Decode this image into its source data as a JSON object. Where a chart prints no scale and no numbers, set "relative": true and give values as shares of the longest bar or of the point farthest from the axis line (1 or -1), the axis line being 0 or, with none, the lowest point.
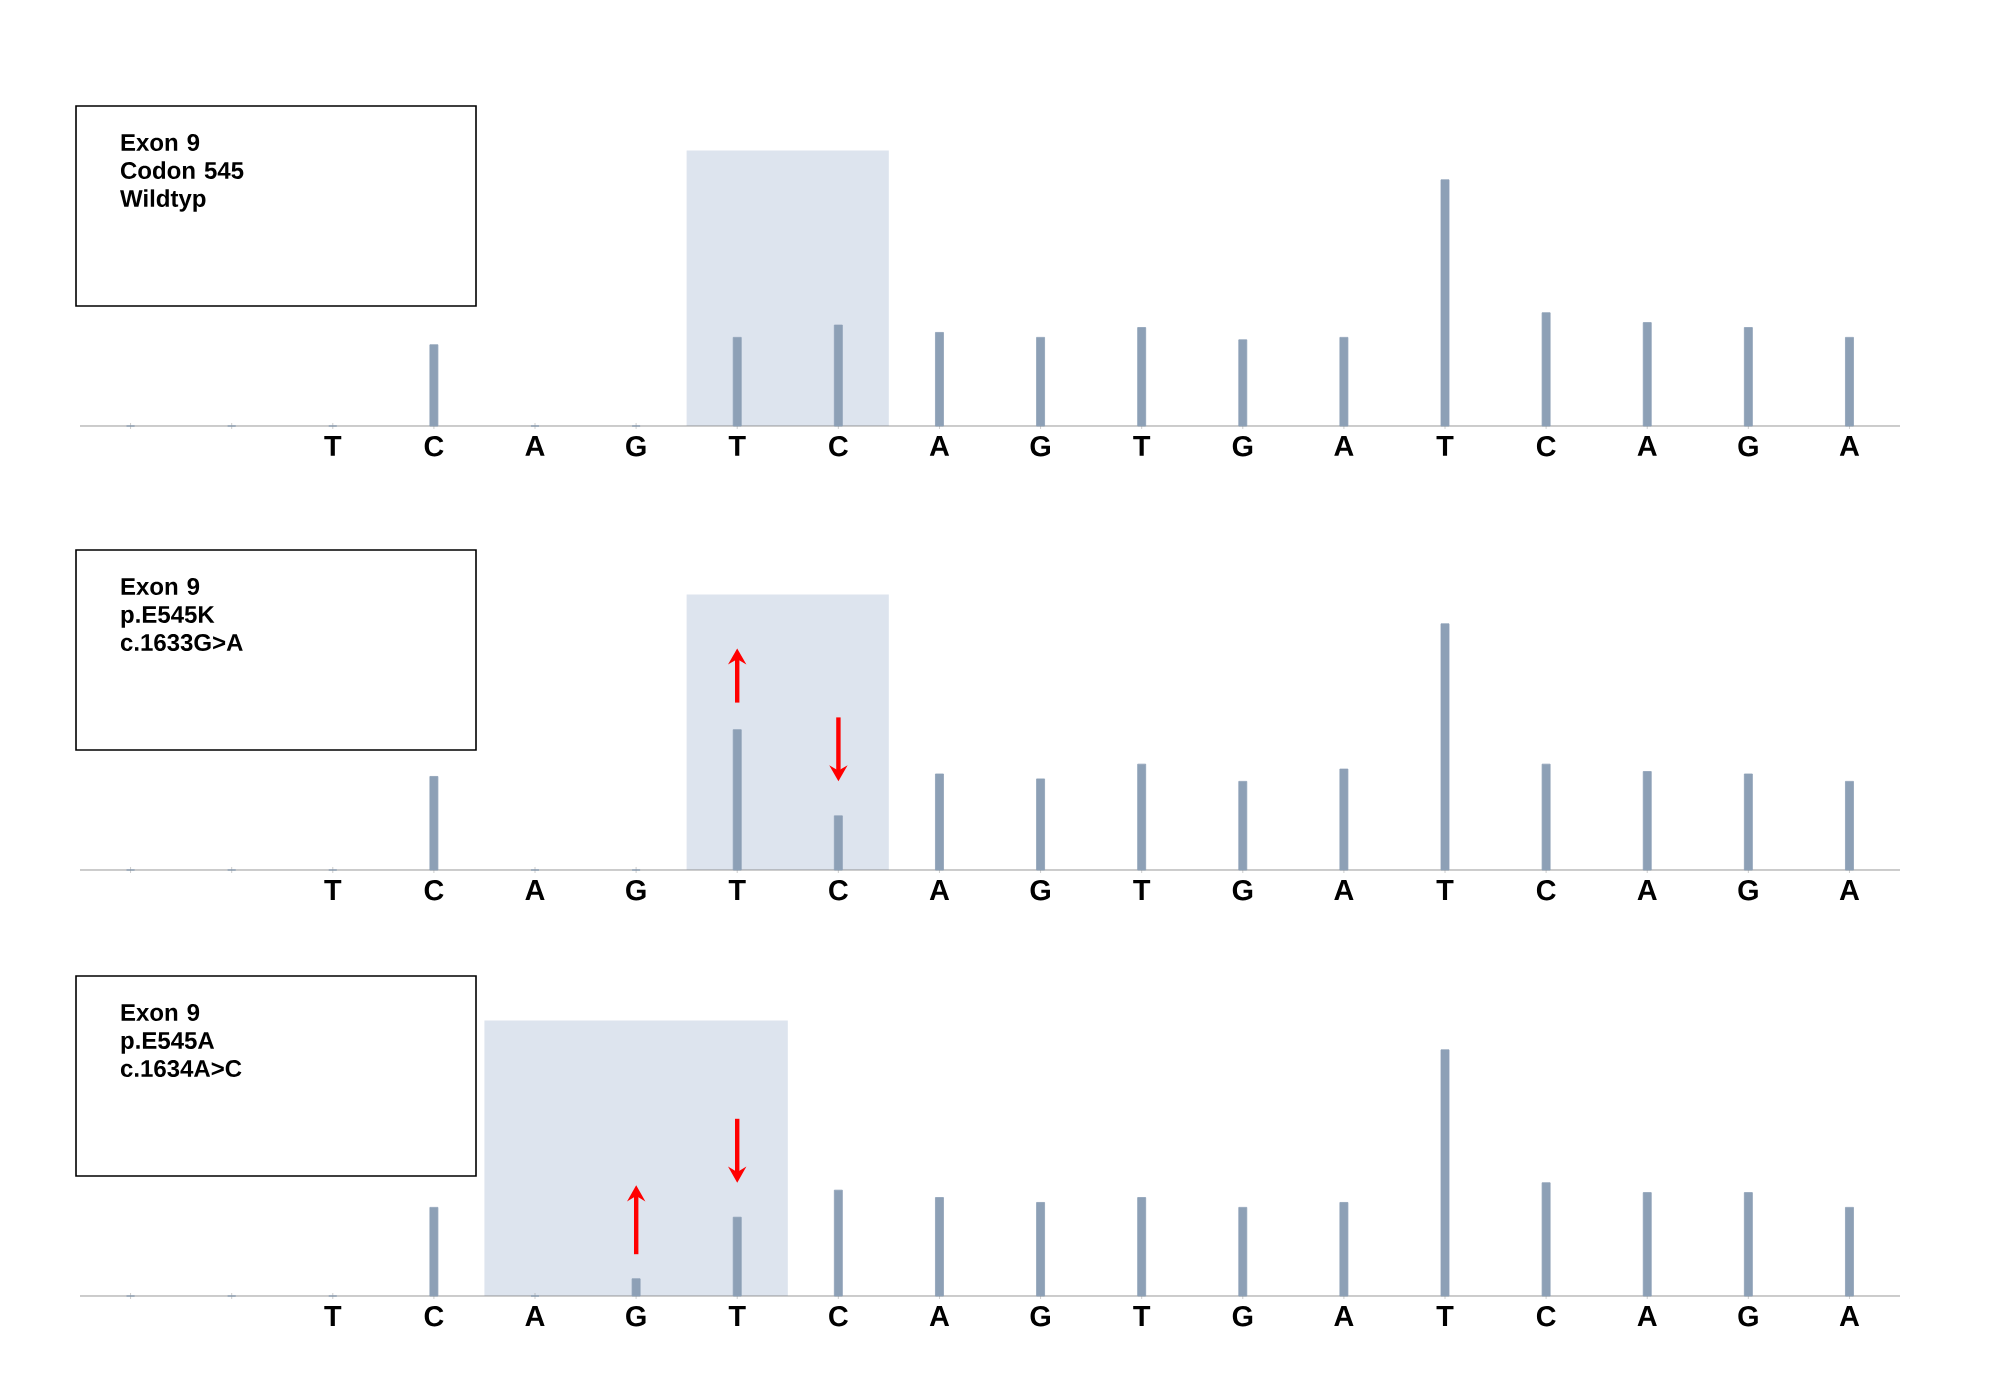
{
  "chart_data": [
    {
      "type": "bar",
      "relative": true,
      "color": "#8da0b6",
      "categories": [
        null,
        null,
        "T",
        "C",
        "A",
        "G",
        "T",
        "C",
        "A",
        "G",
        "T",
        "G",
        "A",
        "T",
        "C",
        "A",
        "G",
        "A"
      ],
      "values": [
        0,
        0,
        0,
        0.33,
        0,
        0,
        0.36,
        0.41,
        0.38,
        0.36,
        0.4,
        0.35,
        0.36,
        1,
        0.46,
        0.42,
        0.4,
        0.36
      ],
      "annotations": [
        "Exon 9",
        "Codon 545",
        "Wildtyp"
      ]
    },
    {
      "type": "bar",
      "relative": true,
      "color": "#8da0b6",
      "categories": [
        null,
        null,
        "T",
        "C",
        "A",
        "G",
        "T",
        "C",
        "A",
        "G",
        "T",
        "G",
        "A",
        "T",
        "C",
        "A",
        "G",
        "A"
      ],
      "values": [
        0,
        0,
        0,
        0.38,
        0,
        0,
        0.57,
        0.22,
        0.39,
        0.37,
        0.43,
        0.36,
        0.41,
        1,
        0.43,
        0.4,
        0.39,
        0.36
      ],
      "annotations": [
        "Exon 9",
        "p.E545K",
        "c.1633G>A"
      ]
    },
    {
      "type": "bar",
      "relative": true,
      "color": "#8da0b6",
      "categories": [
        null,
        null,
        "T",
        "C",
        "A",
        "G",
        "T",
        "C",
        "A",
        "G",
        "T",
        "G",
        "A",
        "T",
        "C",
        "A",
        "G",
        "A"
      ],
      "values": [
        0,
        0,
        0,
        0.36,
        0,
        0.07,
        0.32,
        0.43,
        0.4,
        0.38,
        0.4,
        0.36,
        0.38,
        1,
        0.46,
        0.42,
        0.42,
        0.36
      ],
      "annotations": [
        "Exon 9",
        "p.E545A",
        "c.1634A>C"
      ]
    }
  ]
}
